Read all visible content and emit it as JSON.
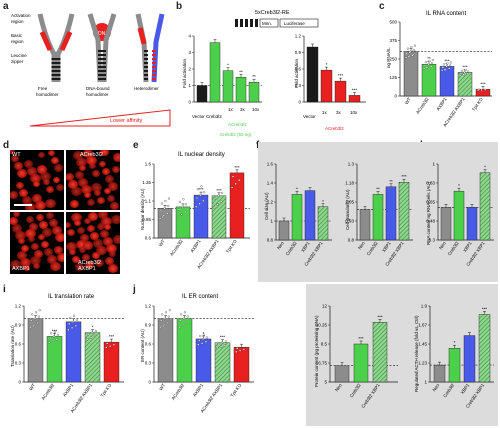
{
  "letters": [
    "a",
    "b",
    "c",
    "d",
    "e",
    "f",
    "g",
    "h",
    "i",
    "j",
    "k",
    "l"
  ],
  "colors": {
    "grey": "#8c8c8c",
    "green": "#4cd04c",
    "blue": "#4a5ae8",
    "hatch": "#8fd68f",
    "red": "#e82020",
    "black": "#1a1a1a",
    "white": "#ffffff"
  },
  "panel_a": {
    "labels": [
      "Activation",
      "region",
      "Basic",
      "region",
      "Leucine",
      "zipper"
    ],
    "captions": [
      "Free",
      "homodimer",
      "DNA-bound",
      "homodimer",
      "Heterodimer"
    ],
    "gradient_label": "Lower affinity"
  },
  "panel_b": {
    "construct": "5xCreb3l2-RE",
    "construct_parts": [
      "Mnn.",
      "Luciferase"
    ],
    "left_ylabel": "Fold activation",
    "right_ylabel": "Fold activation",
    "left_dose_label": "ACreb3l2",
    "left_group_label": "Creb3l2 (50 ng)",
    "right_dose_label": "ACreb3l2",
    "dose_ticks_left": [
      "1x",
      "3x",
      "10x"
    ],
    "dose_ticks_right": [
      "1x",
      "3x",
      "10x"
    ],
    "left_xlabels": [
      "Vector",
      "Creb3l2"
    ],
    "right_xlabels": [
      "Vector"
    ]
  },
  "panel_c": {
    "title": "IL RNA content",
    "ylabel": "ng RNA/IL",
    "xlabels": [
      "WT",
      "ACreb3l2",
      "AXBP1",
      "ACreb3l2 AXBP1",
      "Tpit KO"
    ]
  },
  "panel_d": {
    "labels": [
      "WT",
      "ACreb3l2",
      "AXBP1",
      "ACreb3l2 AXBP1"
    ]
  },
  "panel_e": {
    "title": "IL nuclear density",
    "ylabel": "Nuclear density (AU)",
    "xlabels": [
      "WT",
      "ACreb3l2",
      "AXBP1",
      "ACreb3l2 AXBP1",
      "Tpit KO"
    ]
  },
  "panel_f": {
    "ylabel": "Cell size (AU)",
    "xlabels": [
      "Neo",
      "Creb3l2",
      "XBP1",
      "Creb3l2 XBP1"
    ]
  },
  "panel_g": {
    "ylabel": "Cell granularity (AU)",
    "xlabels": [
      "Neo",
      "Creb3l2",
      "XBP1",
      "Creb3l2 XBP1"
    ]
  },
  "panel_h": {
    "ylabel": "RNA content ng RNA/cells (AU)",
    "xlabels": [
      "Neo",
      "Creb3l2",
      "XBP1",
      "Creb3l2 XBP1"
    ]
  },
  "panel_i": {
    "title": "IL translation rate",
    "ylabel": "Translation rate (AU)",
    "xlabels": [
      "WT",
      "ACreb3l2",
      "AXBP1",
      "ACreb3l2 AXBP1",
      "Tpit KO"
    ]
  },
  "panel_j": {
    "title": "IL ER content",
    "ylabel": "ER content (AU)",
    "xlabels": [
      "WT",
      "ACreb3l2",
      "AXBP1",
      "ACreb3l2 AXBP1",
      "Tpit KO"
    ]
  },
  "panel_k": {
    "ylabel": "Protein content (pg protein/ng DNA)",
    "xlabels": [
      "Neo",
      "Creb3l2",
      "Creb3l2 XBP1"
    ]
  },
  "panel_l": {
    "ylabel": "Regulated ACTH release (fold vs. Ctrl)",
    "xlabels": [
      "Neo",
      "Creb3l2",
      "XBP1",
      "Creb3l2 XBP1"
    ]
  },
  "chart_data": [
    {
      "panel": "b-left",
      "type": "bar",
      "categories": [
        "Vector",
        "Creb3l2",
        "1x",
        "3x",
        "10x"
      ],
      "values": [
        1.0,
        3.6,
        1.9,
        1.5,
        1.2
      ],
      "ylim": [
        0,
        4
      ],
      "sig": [
        "",
        "",
        "*",
        "**",
        "**"
      ]
    },
    {
      "panel": "b-right",
      "type": "bar",
      "categories": [
        "Vector",
        "1x",
        "3x",
        "10x"
      ],
      "values": [
        1.0,
        0.58,
        0.38,
        0.12
      ],
      "ylim": [
        0,
        1.2
      ],
      "sig": [
        "",
        "*",
        "***",
        "***"
      ]
    },
    {
      "panel": "c",
      "type": "bar",
      "categories": [
        "WT",
        "ACreb3l2",
        "AXBP1",
        "ACreb3l2 AXBP1",
        "Tpit KO"
      ],
      "values": [
        300,
        215,
        200,
        160,
        45
      ],
      "ylim": [
        0,
        500
      ],
      "sig": [
        "",
        "**",
        "***",
        "***",
        "***"
      ]
    },
    {
      "panel": "e",
      "type": "bar",
      "categories": [
        "WT",
        "ACreb3l2",
        "AXBP1",
        "ACreb3l2 AXBP1",
        "Tpit KO"
      ],
      "values": [
        1.0,
        1.02,
        1.18,
        1.17,
        1.48
      ],
      "ylim": [
        0.6,
        1.6
      ],
      "sig": [
        "",
        "",
        "***",
        "***",
        "***"
      ]
    },
    {
      "panel": "f",
      "type": "bar",
      "categories": [
        "Neo",
        "Creb3l2",
        "XBP1",
        "Creb3l2 XBP1"
      ],
      "values": [
        1.0,
        1.28,
        1.32,
        1.15
      ],
      "ylim": [
        0.8,
        1.6
      ],
      "sig": [
        "",
        "*",
        "",
        "*"
      ]
    },
    {
      "panel": "g",
      "type": "bar",
      "categories": [
        "Neo",
        "Creb3l2",
        "XBP1",
        "Creb3l2 XBP1"
      ],
      "values": [
        1.0,
        1.1,
        1.15,
        1.18
      ],
      "ylim": [
        0.8,
        1.3
      ],
      "sig": [
        "",
        "**",
        "**",
        "***"
      ]
    },
    {
      "panel": "h",
      "type": "bar",
      "categories": [
        "Neo",
        "Creb3l2",
        "XBP1",
        "Creb3l2 XBP1"
      ],
      "values": [
        0.6,
        0.75,
        0.6,
        0.92
      ],
      "ylim": [
        0.3,
        1.0
      ],
      "sig": [
        "",
        "*",
        "",
        "*"
      ]
    },
    {
      "panel": "i",
      "type": "bar",
      "categories": [
        "WT",
        "ACreb3l2",
        "AXBP1",
        "ACreb3l2 AXBP1",
        "Tpit KO"
      ],
      "values": [
        1.0,
        0.72,
        0.95,
        0.78,
        0.63
      ],
      "ylim": [
        0,
        1.2
      ],
      "sig": [
        "",
        "***",
        "",
        "*",
        "***"
      ]
    },
    {
      "panel": "j",
      "type": "bar",
      "categories": [
        "WT",
        "ACreb3l2",
        "AXBP1",
        "ACreb3l2 AXBP1",
        "Tpit KO"
      ],
      "values": [
        1.0,
        1.0,
        0.68,
        0.62,
        0.55
      ],
      "ylim": [
        0,
        1.2
      ],
      "sig": [
        "",
        "",
        "*",
        "***",
        ""
      ]
    },
    {
      "panel": "k",
      "type": "bar",
      "categories": [
        "Neo",
        "Creb3l2",
        "Creb3l2 XBP1"
      ],
      "values": [
        6.5,
        8.5,
        10.5
      ],
      "ylim": [
        5,
        12
      ],
      "sig": [
        "",
        "***",
        "***"
      ]
    },
    {
      "panel": "l",
      "type": "bar",
      "categories": [
        "Neo",
        "Creb3l2",
        "XBP1",
        "Creb3l2 XBP1"
      ],
      "values": [
        1.2,
        1.4,
        1.55,
        1.8
      ],
      "ylim": [
        1.0,
        1.9
      ],
      "sig": [
        "",
        "*",
        "",
        "***"
      ]
    }
  ]
}
